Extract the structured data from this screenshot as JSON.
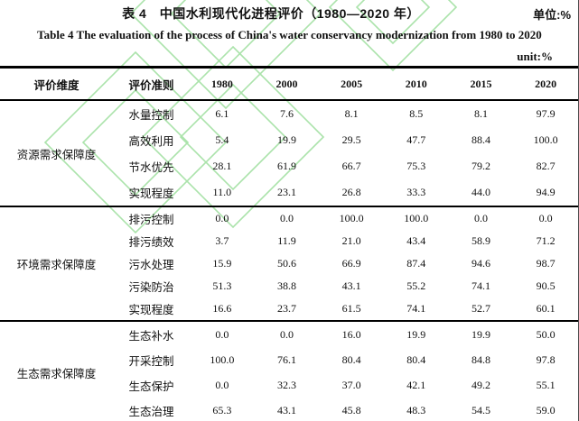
{
  "header": {
    "title_cn": "表 4　中国水利现代化进程评价（1980—2020 年）",
    "unit_cn": "单位:%",
    "title_en": "Table 4 The evaluation of the process of China's water conservancy modernization from 1980 to 2020",
    "unit_en": "unit:%"
  },
  "table": {
    "columns": [
      "评价维度",
      "评价准则",
      "1980",
      "2000",
      "2005",
      "2010",
      "2015",
      "2020"
    ],
    "groups": [
      {
        "dimension": "资源需求保障度",
        "rows": [
          {
            "criterion": "水量控制",
            "values": [
              "6.1",
              "7.6",
              "8.1",
              "8.5",
              "8.1",
              "97.9"
            ]
          },
          {
            "criterion": "高效利用",
            "values": [
              "5.4",
              "19.9",
              "29.5",
              "47.7",
              "88.4",
              "100.0"
            ]
          },
          {
            "criterion": "节水优先",
            "values": [
              "28.1",
              "61.9",
              "66.7",
              "75.3",
              "79.2",
              "82.7"
            ]
          },
          {
            "criterion": "实现程度",
            "values": [
              "11.0",
              "23.1",
              "26.8",
              "33.3",
              "44.0",
              "94.9"
            ]
          }
        ]
      },
      {
        "dimension": "环境需求保障度",
        "rows": [
          {
            "criterion": "排污控制",
            "values": [
              "0.0",
              "0.0",
              "100.0",
              "100.0",
              "0.0",
              "0.0"
            ]
          },
          {
            "criterion": "排污绩效",
            "values": [
              "3.7",
              "11.9",
              "21.0",
              "43.4",
              "58.9",
              "71.2"
            ]
          },
          {
            "criterion": "污水处理",
            "values": [
              "15.9",
              "50.6",
              "66.9",
              "87.4",
              "94.6",
              "98.7"
            ]
          },
          {
            "criterion": "污染防治",
            "values": [
              "51.3",
              "38.8",
              "43.1",
              "55.2",
              "74.1",
              "90.5"
            ]
          },
          {
            "criterion": "实现程度",
            "values": [
              "16.6",
              "23.7",
              "61.5",
              "74.1",
              "52.7",
              "60.1"
            ]
          }
        ]
      },
      {
        "dimension": "生态需求保障度",
        "rows": [
          {
            "criterion": "生态补水",
            "values": [
              "0.0",
              "0.0",
              "16.0",
              "19.9",
              "19.9",
              "50.0"
            ]
          },
          {
            "criterion": "开采控制",
            "values": [
              "100.0",
              "76.1",
              "80.4",
              "80.4",
              "84.8",
              "97.8"
            ]
          },
          {
            "criterion": "生态保护",
            "values": [
              "0.0",
              "32.3",
              "37.0",
              "42.1",
              "49.2",
              "55.1"
            ]
          },
          {
            "criterion": "生态治理",
            "values": [
              "65.3",
              "43.1",
              "45.8",
              "48.3",
              "54.5",
              "59.0"
            ]
          }
        ]
      }
    ]
  },
  "colors": {
    "watermark_green": "#8fda8f",
    "rule_black": "#000000",
    "text": "#111111"
  }
}
